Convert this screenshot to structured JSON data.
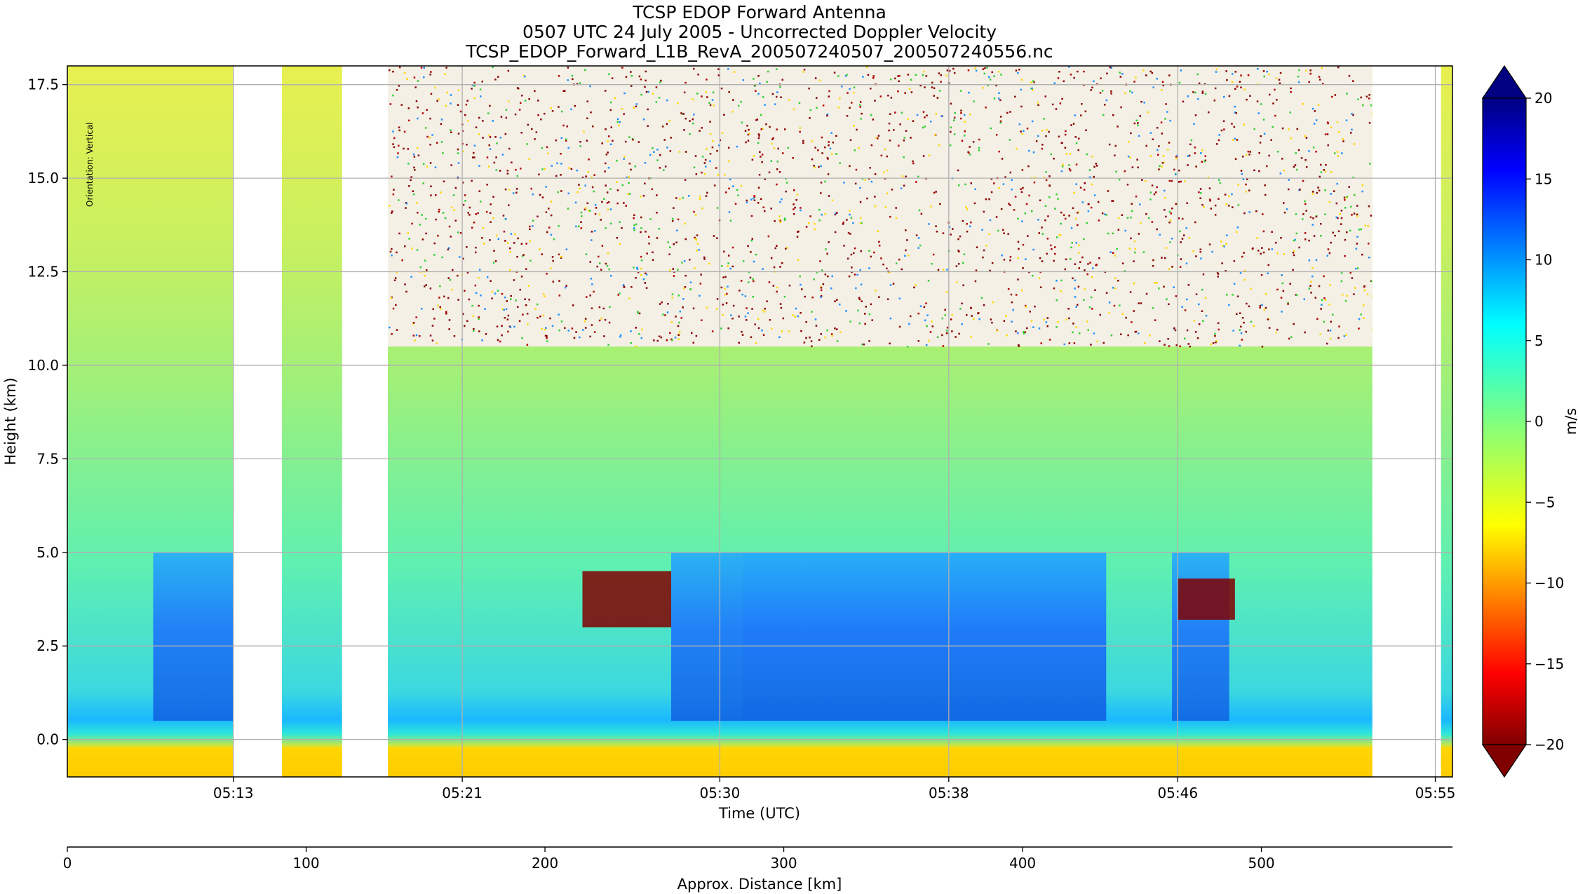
{
  "chart_data": {
    "type": "heatmap",
    "title_lines": [
      "TCSP EDOP Forward Antenna",
      "0507 UTC 24 July 2005 - Uncorrected Doppler Velocity",
      "TCSP_EDOP_Forward_L1B_RevA_200507240507_200507240556.nc"
    ],
    "xlabel": "Time (UTC)",
    "ylabel": "Height (km)",
    "x_ticks": [
      "05:13",
      "05:21",
      "05:30",
      "05:38",
      "05:46",
      "05:55"
    ],
    "x_tick_minutes": [
      13.0,
      21.0,
      30.0,
      38.0,
      46.0,
      55.0
    ],
    "x_range_minutes": [
      7.2,
      55.6
    ],
    "ylim": [
      -1.0,
      18.0
    ],
    "y_ticks": [
      0.0,
      2.5,
      5.0,
      7.5,
      10.0,
      12.5,
      15.0,
      17.5
    ],
    "y_tick_labels": [
      "0.0",
      "2.5",
      "5.0",
      "7.5",
      "10.0",
      "12.5",
      "15.0",
      "17.5"
    ],
    "grid": true,
    "colorbar": {
      "label": "m/s",
      "range": [
        -20,
        20
      ],
      "ticks": [
        20,
        15,
        10,
        5,
        0,
        -5,
        -10,
        -15,
        -20
      ],
      "tick_labels": [
        "20",
        "15",
        "10",
        "5",
        "0",
        "−5",
        "−10",
        "−15",
        "−20"
      ],
      "colormap": "jet_reversed",
      "extend": "both"
    },
    "annotation": "Orientation: Vertical",
    "data_gaps_minutes": [
      [
        13.0,
        14.7
      ],
      [
        16.8,
        18.4
      ],
      [
        52.8,
        55.2
      ]
    ],
    "distance_axis": {
      "label": "Approx. Distance [km]",
      "range": [
        0,
        580
      ],
      "ticks": [
        0,
        100,
        200,
        300,
        400,
        500
      ],
      "tick_labels": [
        "0",
        "100",
        "200",
        "300",
        "400",
        "500"
      ]
    },
    "features": [
      {
        "kind": "downdraft_column_blue",
        "t0": 10.2,
        "t1": 13.0,
        "z0": 0.5,
        "z1": 5.0,
        "v": 14
      },
      {
        "kind": "downdraft_column_blue",
        "t0": 28.3,
        "t1": 30.8,
        "z0": 0.5,
        "z1": 5.0,
        "v": 13
      },
      {
        "kind": "downdraft_core_blue",
        "t0": 30.8,
        "t1": 43.5,
        "z0": 0.5,
        "z1": 5.0,
        "v": 15
      },
      {
        "kind": "downdraft_column_blue",
        "t0": 45.8,
        "t1": 47.8,
        "z0": 0.5,
        "z1": 5.0,
        "v": 16
      },
      {
        "kind": "noise_above_cloud",
        "t0": 18.4,
        "t1": 52.8,
        "z0": 10.5,
        "z1": 18.0,
        "v": -20
      },
      {
        "kind": "bright_band_red",
        "t0": 25.2,
        "t1": 28.3,
        "z0": 3.0,
        "z1": 4.5,
        "v": -20
      },
      {
        "kind": "bright_band_red",
        "t0": 46.0,
        "t1": 48.0,
        "z0": 3.2,
        "z1": 4.3,
        "v": -20
      },
      {
        "kind": "surface_band_orange",
        "t0": 7.2,
        "t1": 55.6,
        "z0": -1.0,
        "z1": -0.2,
        "v": -8
      }
    ]
  }
}
